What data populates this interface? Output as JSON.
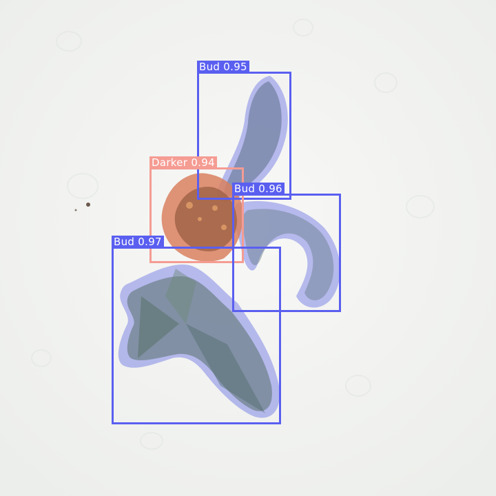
{
  "detections": [
    {
      "label": "Bud 0.95",
      "color": "#5a5ff0"
    },
    {
      "label": "Darker 0.94",
      "color": "#f59c93"
    },
    {
      "label": "Bud 0.96",
      "color": "#5a5ff0"
    },
    {
      "label": "Bud 0.97",
      "color": "#5a5ff0"
    }
  ],
  "colors": {
    "background": "#f3f4f2",
    "bud_mask": "#7f86e6",
    "darker_mask": "#d9805f"
  }
}
